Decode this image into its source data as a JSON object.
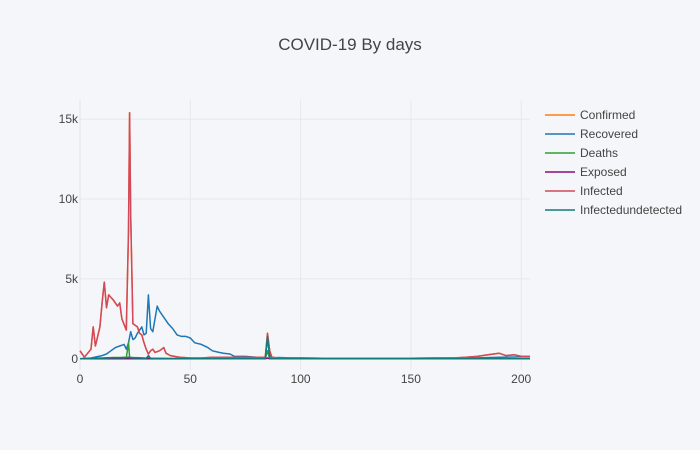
{
  "chart_data": {
    "type": "line",
    "title": "COVID-19 By days",
    "xlabel": "",
    "ylabel": "",
    "xlim": [
      0,
      204
    ],
    "ylim": [
      -700,
      16200
    ],
    "x_ticks": [
      0,
      50,
      100,
      150,
      200
    ],
    "y_ticks": [
      0,
      5000,
      10000,
      15000
    ],
    "x_tick_labels": [
      "0",
      "50",
      "100",
      "150",
      "200"
    ],
    "y_tick_labels": [
      "0",
      "5k",
      "10k",
      "15k"
    ],
    "grid": true,
    "legend_position": "right",
    "series": [
      {
        "name": "Confirmed",
        "color": "#ff7f0e",
        "points": [
          [
            0,
            500
          ],
          [
            2,
            100
          ],
          [
            5,
            600
          ],
          [
            6,
            2000
          ],
          [
            7,
            800
          ],
          [
            9,
            2000
          ],
          [
            10,
            3500
          ],
          [
            11,
            4800
          ],
          [
            12,
            3200
          ],
          [
            13,
            4000
          ],
          [
            15,
            3700
          ],
          [
            17,
            3300
          ],
          [
            18,
            3500
          ],
          [
            19,
            2500
          ],
          [
            21,
            1800
          ],
          [
            22,
            8000
          ],
          [
            22.5,
            15400
          ],
          [
            23,
            9000
          ],
          [
            24,
            2200
          ],
          [
            26,
            2000
          ],
          [
            27,
            1600
          ],
          [
            28,
            1500
          ],
          [
            29,
            1000
          ],
          [
            30,
            600
          ],
          [
            31,
            300
          ],
          [
            32,
            500
          ],
          [
            33,
            600
          ],
          [
            34,
            400
          ],
          [
            36,
            500
          ],
          [
            38,
            700
          ],
          [
            39,
            350
          ],
          [
            41,
            200
          ],
          [
            45,
            100
          ],
          [
            50,
            50
          ],
          [
            55,
            50
          ],
          [
            60,
            100
          ],
          [
            70,
            100
          ],
          [
            80,
            100
          ],
          [
            84,
            100
          ],
          [
            85,
            1600
          ],
          [
            86,
            500
          ],
          [
            87,
            100
          ],
          [
            90,
            50
          ],
          [
            100,
            50
          ],
          [
            110,
            30
          ],
          [
            120,
            30
          ],
          [
            130,
            30
          ],
          [
            140,
            30
          ],
          [
            150,
            40
          ],
          [
            160,
            50
          ],
          [
            170,
            60
          ],
          [
            175,
            100
          ],
          [
            180,
            150
          ],
          [
            185,
            250
          ],
          [
            190,
            350
          ],
          [
            193,
            200
          ],
          [
            197,
            250
          ],
          [
            200,
            150
          ],
          [
            204,
            150
          ]
        ]
      },
      {
        "name": "Recovered",
        "color": "#1f77b4",
        "points": [
          [
            0,
            0
          ],
          [
            5,
            50
          ],
          [
            10,
            200
          ],
          [
            12,
            300
          ],
          [
            14,
            500
          ],
          [
            16,
            700
          ],
          [
            18,
            800
          ],
          [
            20,
            900
          ],
          [
            21,
            600
          ],
          [
            22,
            1000
          ],
          [
            23,
            1700
          ],
          [
            24,
            1200
          ],
          [
            25,
            1300
          ],
          [
            26,
            1600
          ],
          [
            28,
            2000
          ],
          [
            29,
            1500
          ],
          [
            30,
            1600
          ],
          [
            31,
            4000
          ],
          [
            32,
            1900
          ],
          [
            33,
            1700
          ],
          [
            34,
            2500
          ],
          [
            35,
            3300
          ],
          [
            36,
            3000
          ],
          [
            38,
            2600
          ],
          [
            40,
            2200
          ],
          [
            42,
            1900
          ],
          [
            44,
            1500
          ],
          [
            46,
            1400
          ],
          [
            48,
            1400
          ],
          [
            50,
            1300
          ],
          [
            52,
            1000
          ],
          [
            55,
            900
          ],
          [
            58,
            700
          ],
          [
            60,
            500
          ],
          [
            63,
            400
          ],
          [
            65,
            350
          ],
          [
            68,
            300
          ],
          [
            70,
            150
          ],
          [
            75,
            150
          ],
          [
            80,
            100
          ],
          [
            84,
            100
          ],
          [
            85,
            1300
          ],
          [
            86,
            200
          ],
          [
            87,
            50
          ],
          [
            90,
            80
          ],
          [
            95,
            60
          ],
          [
            100,
            50
          ],
          [
            110,
            40
          ],
          [
            120,
            30
          ],
          [
            150,
            30
          ],
          [
            180,
            60
          ],
          [
            190,
            100
          ],
          [
            200,
            120
          ],
          [
            204,
            120
          ]
        ]
      },
      {
        "name": "Deaths",
        "color": "#2ca02c",
        "points": [
          [
            0,
            0
          ],
          [
            5,
            30
          ],
          [
            10,
            50
          ],
          [
            15,
            80
          ],
          [
            19,
            90
          ],
          [
            20,
            100
          ],
          [
            21,
            70
          ],
          [
            22,
            1000
          ],
          [
            22.5,
            100
          ],
          [
            24,
            80
          ],
          [
            28,
            60
          ],
          [
            30,
            40
          ],
          [
            31,
            100
          ],
          [
            32,
            30
          ],
          [
            35,
            20
          ],
          [
            40,
            20
          ],
          [
            50,
            10
          ],
          [
            60,
            10
          ],
          [
            70,
            10
          ],
          [
            80,
            10
          ],
          [
            84,
            10
          ],
          [
            85,
            500
          ],
          [
            86,
            10
          ],
          [
            90,
            10
          ],
          [
            100,
            5
          ],
          [
            150,
            5
          ],
          [
            204,
            5
          ]
        ]
      },
      {
        "name": "Exposed",
        "color": "#8b0a7a",
        "points": [
          [
            0,
            0
          ],
          [
            20,
            0
          ],
          [
            30,
            0
          ],
          [
            50,
            0
          ],
          [
            84,
            0
          ],
          [
            85,
            50
          ],
          [
            86,
            0
          ],
          [
            100,
            0
          ],
          [
            150,
            0
          ],
          [
            204,
            0
          ]
        ]
      },
      {
        "name": "Infected",
        "color": "#d1495b",
        "points": [
          [
            0,
            500
          ],
          [
            2,
            100
          ],
          [
            5,
            600
          ],
          [
            6,
            2000
          ],
          [
            7,
            800
          ],
          [
            9,
            2000
          ],
          [
            10,
            3500
          ],
          [
            11,
            4800
          ],
          [
            12,
            3200
          ],
          [
            13,
            4000
          ],
          [
            15,
            3700
          ],
          [
            17,
            3300
          ],
          [
            18,
            3500
          ],
          [
            19,
            2500
          ],
          [
            21,
            1800
          ],
          [
            22,
            8000
          ],
          [
            22.5,
            15400
          ],
          [
            23,
            9000
          ],
          [
            24,
            2200
          ],
          [
            26,
            2000
          ],
          [
            27,
            1600
          ],
          [
            28,
            1500
          ],
          [
            29,
            1000
          ],
          [
            30,
            600
          ],
          [
            31,
            300
          ],
          [
            32,
            500
          ],
          [
            33,
            600
          ],
          [
            34,
            400
          ],
          [
            36,
            500
          ],
          [
            38,
            700
          ],
          [
            39,
            350
          ],
          [
            41,
            200
          ],
          [
            45,
            100
          ],
          [
            50,
            50
          ],
          [
            55,
            50
          ],
          [
            60,
            100
          ],
          [
            70,
            100
          ],
          [
            80,
            100
          ],
          [
            84,
            100
          ],
          [
            85,
            1600
          ],
          [
            86,
            500
          ],
          [
            87,
            100
          ],
          [
            90,
            50
          ],
          [
            100,
            50
          ],
          [
            110,
            30
          ],
          [
            120,
            30
          ],
          [
            130,
            30
          ],
          [
            140,
            30
          ],
          [
            150,
            40
          ],
          [
            160,
            50
          ],
          [
            170,
            60
          ],
          [
            175,
            100
          ],
          [
            180,
            150
          ],
          [
            185,
            250
          ],
          [
            190,
            350
          ],
          [
            193,
            200
          ],
          [
            197,
            250
          ],
          [
            200,
            150
          ],
          [
            204,
            150
          ]
        ]
      },
      {
        "name": "Infectedundetected",
        "color": "#127c7c",
        "points": [
          [
            0,
            0
          ],
          [
            5,
            20
          ],
          [
            10,
            40
          ],
          [
            15,
            60
          ],
          [
            20,
            60
          ],
          [
            22,
            100
          ],
          [
            23,
            60
          ],
          [
            30,
            30
          ],
          [
            31,
            200
          ],
          [
            32,
            30
          ],
          [
            40,
            20
          ],
          [
            60,
            10
          ],
          [
            84,
            10
          ],
          [
            85,
            1400
          ],
          [
            86,
            10
          ],
          [
            90,
            10
          ],
          [
            100,
            5
          ],
          [
            150,
            5
          ],
          [
            204,
            5
          ]
        ]
      }
    ]
  }
}
